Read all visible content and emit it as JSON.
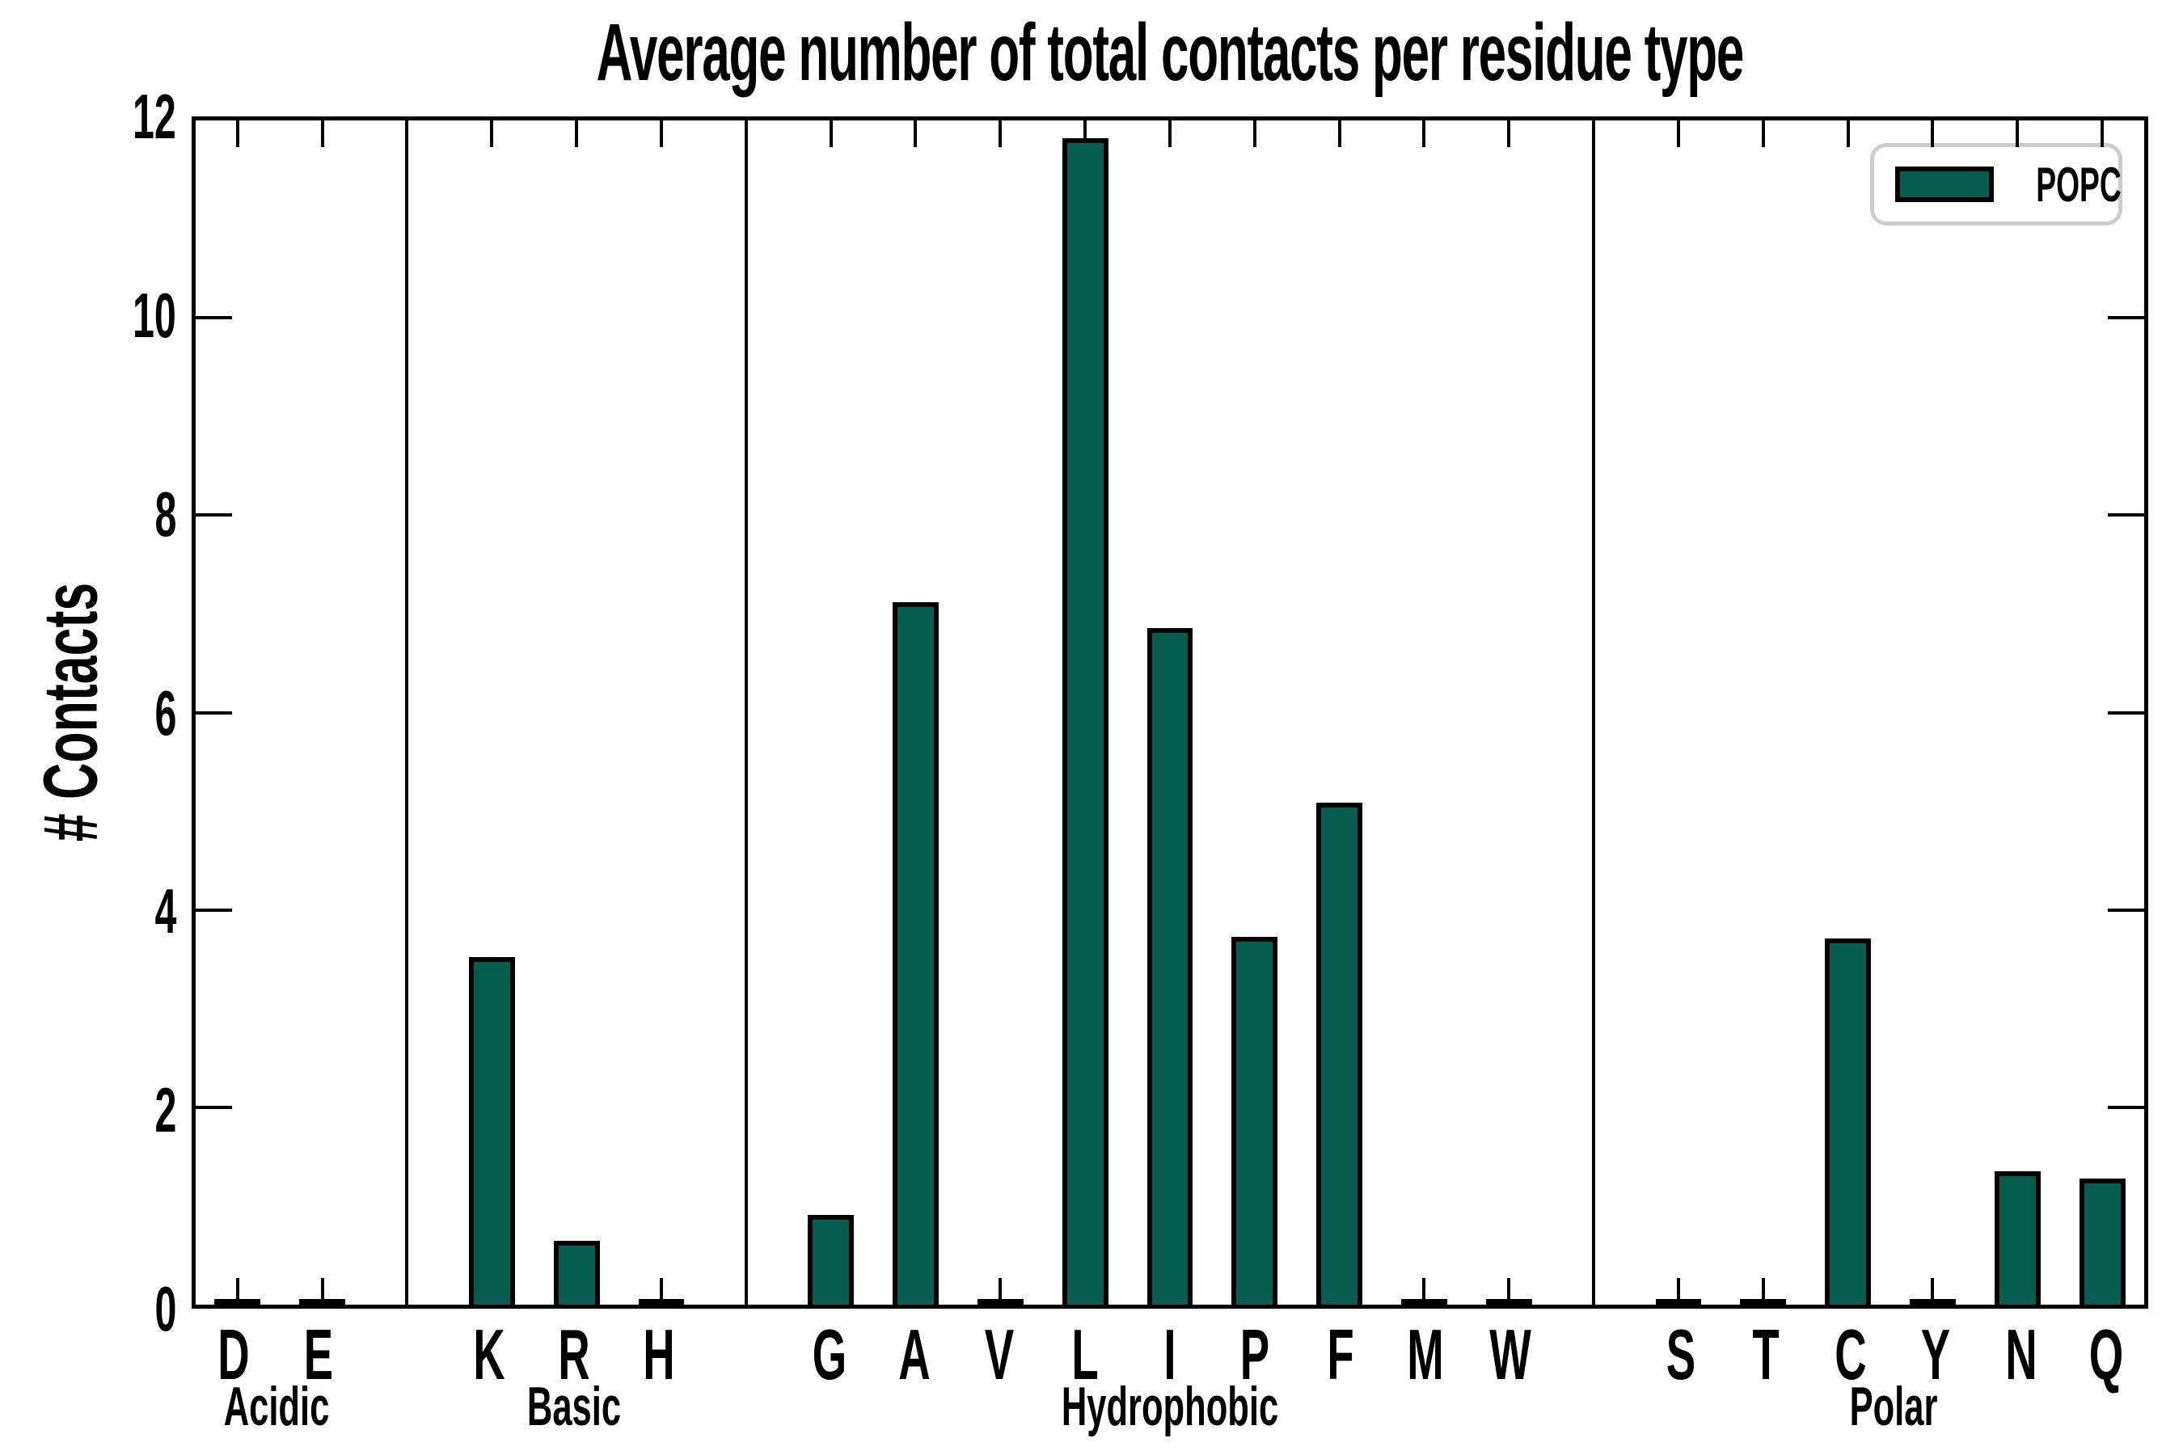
{
  "title": "Average number of total contacts per residue type",
  "y_axis": {
    "label": "# Contacts",
    "ticks": [
      0,
      2,
      4,
      6,
      8,
      10,
      12
    ],
    "min": 0,
    "max": 12
  },
  "legend": {
    "label": "POPC",
    "swatch_color": "#075E50"
  },
  "groups": [
    {
      "name": "Acidic",
      "letters": [
        "D",
        "E"
      ]
    },
    {
      "name": "Basic",
      "letters": [
        "K",
        "R",
        "H"
      ]
    },
    {
      "name": "Hydrophobic",
      "letters": [
        "G",
        "A",
        "V",
        "L",
        "I",
        "P",
        "F",
        "M",
        "W"
      ]
    },
    {
      "name": "Polar",
      "letters": [
        "S",
        "T",
        "C",
        "Y",
        "N",
        "Q"
      ]
    }
  ],
  "chart_data": {
    "type": "bar",
    "title": "Average number of total contacts per residue type",
    "xlabel": "",
    "ylabel": "# Contacts",
    "ylim": [
      0,
      12
    ],
    "grid": false,
    "legend_position": "upper right",
    "series": [
      {
        "name": "POPC",
        "color": "#075E50",
        "categories": [
          "D",
          "E",
          "K",
          "R",
          "H",
          "G",
          "A",
          "V",
          "L",
          "I",
          "P",
          "F",
          "M",
          "W",
          "S",
          "T",
          "C",
          "Y",
          "N",
          "Q"
        ],
        "values": [
          0.0,
          0.0,
          3.52,
          0.65,
          0.0,
          0.91,
          7.12,
          0.0,
          11.82,
          6.86,
          3.73,
          5.09,
          0.0,
          0.0,
          0.0,
          0.0,
          3.71,
          0.0,
          1.35,
          1.28
        ]
      }
    ],
    "category_groups": {
      "Acidic": [
        "D",
        "E"
      ],
      "Basic": [
        "K",
        "R",
        "H"
      ],
      "Hydrophobic": [
        "G",
        "A",
        "V",
        "L",
        "I",
        "P",
        "F",
        "M",
        "W"
      ],
      "Polar": [
        "S",
        "T",
        "C",
        "Y",
        "N",
        "Q"
      ]
    }
  }
}
